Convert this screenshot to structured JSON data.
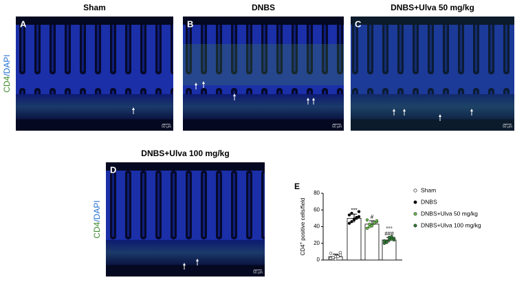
{
  "panels": [
    {
      "title": "Sham",
      "letter": "A",
      "scale": "50 µm",
      "side": [
        "CD4",
        "/DAPI"
      ]
    },
    {
      "title": "DNBS",
      "letter": "B",
      "scale": "50 µm"
    },
    {
      "title": "DNBS+Ulva 50 mg/kg",
      "letter": "C",
      "scale": "50 µm"
    },
    {
      "title": "DNBS+Ulva 100 mg/kg",
      "letter": "D",
      "scale": "50 µm",
      "side": [
        "CD4",
        "/DAPI"
      ]
    }
  ],
  "chart_data": {
    "type": "bar",
    "letter": "E",
    "ylabel": [
      "CD4",
      "+",
      " positive cells/field"
    ],
    "ylim": [
      0,
      80
    ],
    "yticks": [
      0,
      20,
      40,
      60,
      80
    ],
    "series": [
      {
        "name": "Sham",
        "color": "#ffffff",
        "values": [
          4
        ],
        "errors": [
          3
        ],
        "points": [
          2,
          3,
          4,
          5,
          6,
          8,
          3,
          1,
          4,
          9
        ],
        "annotations": []
      },
      {
        "name": "DNBS",
        "color": "#000000",
        "values": [
          50
        ],
        "errors": [
          5
        ],
        "points": [
          44,
          46,
          48,
          50,
          52,
          54,
          56,
          49,
          51,
          58
        ],
        "annotations": [
          "***"
        ]
      },
      {
        "name": "DNBS+Ulva 50 mg/kg",
        "color": "#6abf4b",
        "values": [
          43
        ],
        "errors": [
          4
        ],
        "points": [
          38,
          40,
          42,
          44,
          46,
          48,
          43,
          41,
          45,
          47
        ],
        "annotations": [
          "#"
        ]
      },
      {
        "name": "DNBS+Ulva 100 mg/kg",
        "color": "#2e7d32",
        "values": [
          24
        ],
        "errors": [
          3
        ],
        "points": [
          20,
          22,
          24,
          25,
          26,
          23,
          21,
          27,
          28,
          24
        ],
        "annotations": [
          "°°°",
          "###"
        ]
      }
    ]
  }
}
